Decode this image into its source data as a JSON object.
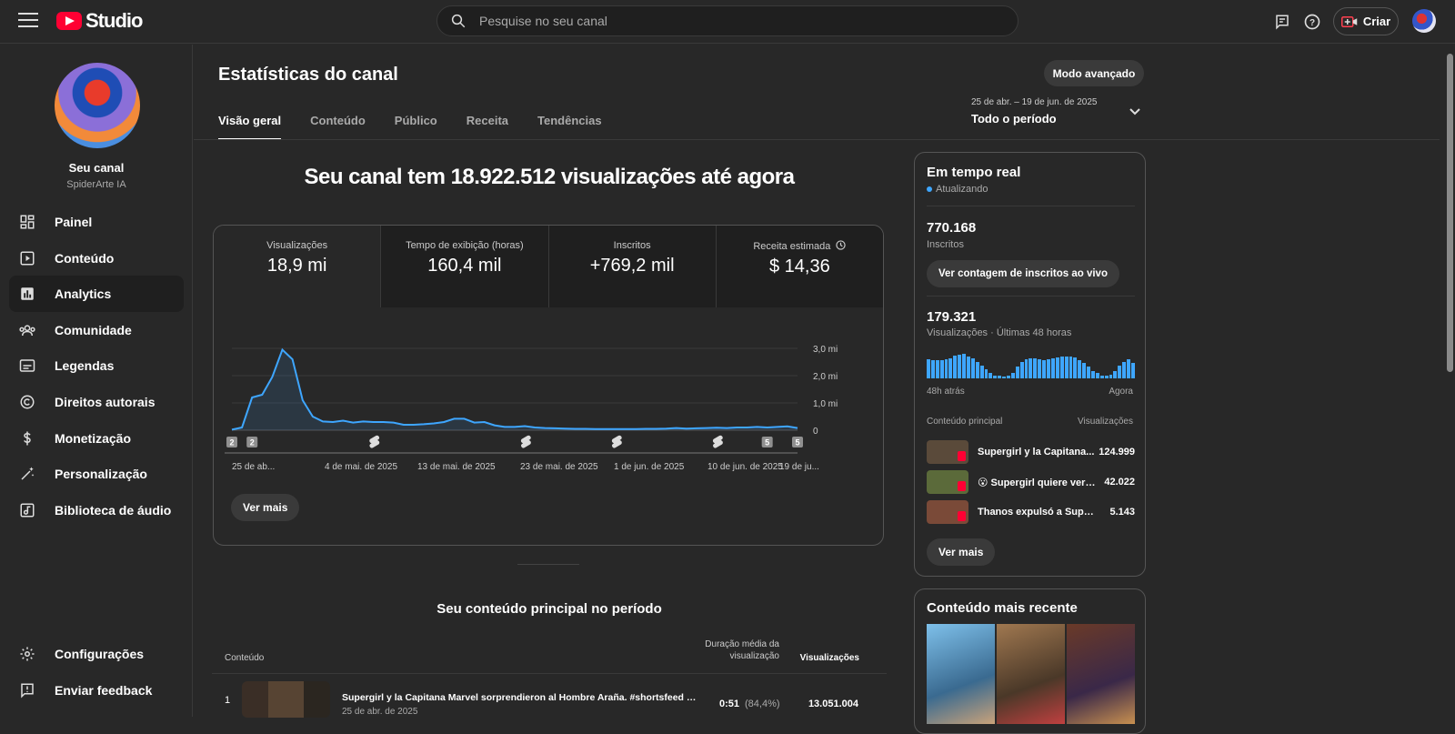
{
  "app": {
    "logo_text": "Studio",
    "brand_color": "#ff0033",
    "accent_color": "#3ea6ff"
  },
  "topbar": {
    "search_placeholder": "Pesquise no seu canal",
    "criar_label": "Criar",
    "icons": [
      "menu-icon",
      "search-icon",
      "feedback-icon",
      "help-icon",
      "create-icon",
      "account-avatar"
    ]
  },
  "sidebar": {
    "channel_name": "Seu canal",
    "channel_handle": "SpiderArte IA",
    "items": [
      {
        "label": "Painel",
        "icon": "dashboard-icon"
      },
      {
        "label": "Conteúdo",
        "icon": "content-icon"
      },
      {
        "label": "Analytics",
        "icon": "analytics-icon",
        "active": true
      },
      {
        "label": "Comunidade",
        "icon": "community-icon"
      },
      {
        "label": "Legendas",
        "icon": "subtitles-icon"
      },
      {
        "label": "Direitos autorais",
        "icon": "copyright-icon"
      },
      {
        "label": "Monetização",
        "icon": "monetization-icon"
      },
      {
        "label": "Personalização",
        "icon": "customization-icon"
      },
      {
        "label": "Biblioteca de áudio",
        "icon": "audio-library-icon"
      }
    ],
    "bottom_items": [
      {
        "label": "Configurações",
        "icon": "settings-icon"
      },
      {
        "label": "Enviar feedback",
        "icon": "send-feedback-icon"
      }
    ]
  },
  "main": {
    "title": "Estatísticas do canal",
    "advanced_mode": "Modo avançado",
    "tabs": [
      "Visão geral",
      "Conteúdo",
      "Público",
      "Receita",
      "Tendências"
    ],
    "date_range": "25 de abr. – 19 de jun. de 2025",
    "period": "Todo o período",
    "headline": "Seu canal tem 18.922.512 visualizações até agora",
    "metrics": [
      {
        "label": "Visualizações",
        "value": "18,9 mi"
      },
      {
        "label": "Tempo de exibição (horas)",
        "value": "160,4 mil"
      },
      {
        "label": "Inscritos",
        "value": "+769,2 mil"
      },
      {
        "label": "Receita estimada",
        "value": "$ 14,36"
      }
    ],
    "ver_mais": "Ver mais",
    "top_content_title": "Seu conteúdo principal no período",
    "table": {
      "col_content": "Conteúdo",
      "col_duration": "Duração média da visualização",
      "col_views": "Visualizações",
      "rows": [
        {
          "rank": "1",
          "title": "Supergirl y la Capitana Marvel sorprendieron al Hombre Araña. #shortsfeed #sho...",
          "date": "25 de abr. de 2025",
          "duration": "0:51",
          "pct": "(84,4%)",
          "views": "13.051.004"
        }
      ]
    }
  },
  "chart_data": {
    "type": "line",
    "x_ticks": [
      "25 de ab...",
      "4 de mai. de 2025",
      "13 de mai. de 2025",
      "23 de mai. de 2025",
      "1 de jun. de 2025",
      "10 de jun. de 2025",
      "19 de ju..."
    ],
    "y_ticks": [
      "3,0 mi",
      "2,0 mi",
      "1,0 mi",
      "0"
    ],
    "ylim": [
      0,
      3.0
    ],
    "y_unit": "mi",
    "values": [
      0.02,
      0.1,
      1.2,
      1.3,
      1.95,
      2.95,
      2.6,
      1.1,
      0.5,
      0.32,
      0.3,
      0.35,
      0.28,
      0.32,
      0.3,
      0.3,
      0.28,
      0.2,
      0.2,
      0.22,
      0.25,
      0.3,
      0.42,
      0.42,
      0.28,
      0.3,
      0.18,
      0.12,
      0.12,
      0.15,
      0.1,
      0.08,
      0.07,
      0.06,
      0.05,
      0.05,
      0.04,
      0.04,
      0.04,
      0.04,
      0.04,
      0.05,
      0.05,
      0.06,
      0.08,
      0.06,
      0.07,
      0.08,
      0.09,
      0.08,
      0.1,
      0.1,
      0.12,
      0.1,
      0.12,
      0.14,
      0.08
    ],
    "markers": [
      {
        "kind": "badge",
        "label": "2",
        "index": 0
      },
      {
        "kind": "badge",
        "label": "2",
        "index": 2
      },
      {
        "kind": "shorts",
        "index": 14
      },
      {
        "kind": "shorts",
        "index": 29
      },
      {
        "kind": "shorts",
        "index": 38
      },
      {
        "kind": "shorts",
        "index": 48
      },
      {
        "kind": "badge",
        "label": "5",
        "index": 53
      },
      {
        "kind": "badge",
        "label": "5",
        "index": 56
      }
    ],
    "line_color": "#3ea6ff"
  },
  "realtime": {
    "title": "Em tempo real",
    "status": "Atualizando",
    "subs_value": "770.168",
    "subs_label": "Inscritos",
    "subs_button": "Ver contagem de inscritos ao vivo",
    "views_value": "179.321",
    "views_label": "Visualizações · Últimas 48 horas",
    "bars": [
      0.75,
      0.72,
      0.7,
      0.72,
      0.76,
      0.8,
      0.88,
      0.92,
      0.95,
      0.85,
      0.78,
      0.65,
      0.5,
      0.35,
      0.2,
      0.12,
      0.1,
      0.08,
      0.1,
      0.2,
      0.45,
      0.65,
      0.75,
      0.8,
      0.78,
      0.76,
      0.72,
      0.75,
      0.8,
      0.82,
      0.85,
      0.85,
      0.85,
      0.82,
      0.72,
      0.6,
      0.45,
      0.3,
      0.2,
      0.12,
      0.1,
      0.15,
      0.3,
      0.5,
      0.65,
      0.75,
      0.6
    ],
    "axis_left": "48h atrás",
    "axis_right": "Agora",
    "head_left": "Conteúdo principal",
    "head_right": "Visualizações",
    "items": [
      {
        "title": "Supergirl y la Capitana...",
        "views": "124.999",
        "color": "#5a4a3a"
      },
      {
        "title": "😮 Supergirl quiere ver l...",
        "views": "42.022",
        "color": "#5b6a3a"
      },
      {
        "title": "Thanos expulsó a Superg...",
        "views": "5.143",
        "color": "#7a4a38"
      }
    ],
    "ver_mais": "Ver mais"
  },
  "recent": {
    "title": "Conteúdo mais recente",
    "thumb_colors": [
      "#5aa6d8",
      "#7a5a3c",
      "#5b3a2a"
    ]
  }
}
